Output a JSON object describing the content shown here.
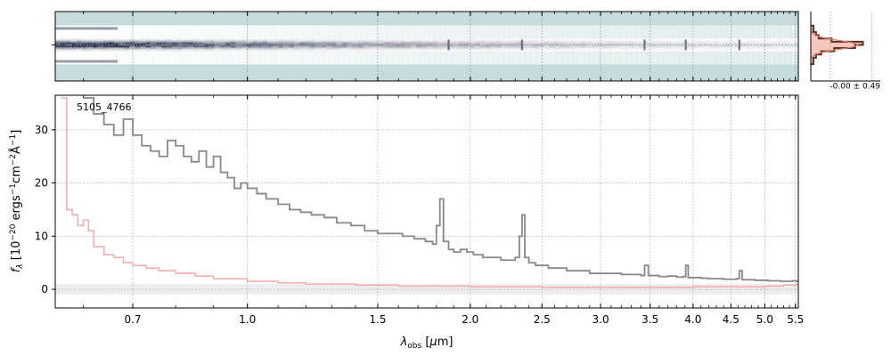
{
  "chart_data": [
    {
      "type": "heatmap",
      "panel": "2d-spectrum",
      "colormap": "bone_r",
      "background_color": "#c5dcdb",
      "grid": true,
      "trace_profile": [
        {
          "x": 0.6,
          "peak": 1.0,
          "width": 5.0,
          "halo": 0.6
        },
        {
          "x": 0.7,
          "peak": 0.95,
          "width": 5.0,
          "halo": 0.55
        },
        {
          "x": 0.85,
          "peak": 0.8,
          "width": 4.5,
          "halo": 0.5
        },
        {
          "x": 1.05,
          "peak": 0.65,
          "width": 4.0,
          "halo": 0.45
        },
        {
          "x": 1.3,
          "peak": 0.5,
          "width": 3.5,
          "halo": 0.4
        },
        {
          "x": 1.6,
          "peak": 0.42,
          "width": 3.0,
          "halo": 0.35
        },
        {
          "x": 2.0,
          "peak": 0.35,
          "width": 3.0,
          "halo": 0.3
        },
        {
          "x": 2.5,
          "peak": 0.28,
          "width": 3.0,
          "halo": 0.25
        },
        {
          "x": 3.0,
          "peak": 0.22,
          "width": 3.0,
          "halo": 0.2
        },
        {
          "x": 4.0,
          "peak": 0.17,
          "width": 3.0,
          "halo": 0.15
        },
        {
          "x": 5.5,
          "peak": 0.14,
          "width": 3.0,
          "halo": 0.12
        }
      ],
      "emission_columns": [
        1.87,
        2.35,
        3.44,
        3.91,
        4.62
      ],
      "trace_color": "#1a2340"
    },
    {
      "type": "line",
      "panel": "1d-spectrum",
      "title": "",
      "annotation": "5105_4766",
      "xlabel": "λ_obs [μm]",
      "ylabel": "f_λ [10^-20 ergs^-1 cm^-2 Å^-1]",
      "xscale": "log",
      "xlim": [
        0.55,
        5.55
      ],
      "ylim": [
        -3.5,
        36.5
      ],
      "x_ticks": [
        0.7,
        1.0,
        1.5,
        2.0,
        2.5,
        3.0,
        3.5,
        4.0,
        4.5,
        5.0,
        5.5
      ],
      "x_tick_labels": [
        "0.7",
        "1.0",
        "1.5",
        "2.0",
        "2.5",
        "3.0",
        "3.5",
        "4.0",
        "4.5",
        "5.0",
        "5.5"
      ],
      "y_ticks": [
        0,
        10,
        20,
        30
      ],
      "y_tick_labels": [
        "0",
        "10",
        "20",
        "30"
      ],
      "grid": true,
      "zero_band": [
        -1.0,
        1.0
      ],
      "series": [
        {
          "color": "#888888",
          "style": "steps",
          "x": [
            0.6,
            0.62,
            0.64,
            0.66,
            0.68,
            0.7,
            0.72,
            0.74,
            0.76,
            0.78,
            0.8,
            0.82,
            0.84,
            0.86,
            0.88,
            0.9,
            0.92,
            0.94,
            0.96,
            0.98,
            1.0,
            1.03,
            1.06,
            1.1,
            1.14,
            1.18,
            1.22,
            1.27,
            1.32,
            1.38,
            1.44,
            1.5,
            1.56,
            1.62,
            1.68,
            1.74,
            1.78,
            1.8,
            1.82,
            1.84,
            1.87,
            1.9,
            1.94,
            1.98,
            2.02,
            2.08,
            2.14,
            2.2,
            2.26,
            2.3,
            2.33,
            2.35,
            2.37,
            2.4,
            2.45,
            2.5,
            2.55,
            2.6,
            2.7,
            2.8,
            2.9,
            3.0,
            3.1,
            3.2,
            3.3,
            3.4,
            3.44,
            3.48,
            3.6,
            3.7,
            3.8,
            3.88,
            3.91,
            3.94,
            4.0,
            4.1,
            4.2,
            4.3,
            4.4,
            4.5,
            4.58,
            4.62,
            4.66,
            4.75,
            4.85,
            4.95,
            5.05,
            5.15,
            5.25,
            5.35,
            5.45,
            5.52
          ],
          "y": [
            36,
            33,
            31,
            29,
            32,
            29,
            27,
            26,
            25,
            28,
            27,
            25,
            24,
            26,
            23,
            25,
            22,
            21,
            19,
            20,
            19,
            18,
            17,
            16,
            15,
            14.5,
            14,
            13.5,
            12.5,
            12,
            11,
            10.5,
            10.5,
            10,
            9.5,
            9,
            8.5,
            12,
            17,
            9,
            7.5,
            7,
            7.5,
            7,
            6.5,
            6,
            6,
            5.5,
            5.5,
            6,
            10,
            14,
            6,
            5,
            4.5,
            4.5,
            4,
            4,
            3.5,
            3.5,
            3,
            3,
            3,
            2.8,
            2.8,
            2.6,
            4.5,
            2.6,
            2.4,
            2.5,
            2.3,
            2.4,
            4.5,
            2.2,
            2.2,
            2.1,
            2,
            2,
            1.9,
            1.9,
            2,
            3.5,
            1.8,
            1.8,
            1.7,
            1.7,
            1.6,
            1.6,
            1.5,
            1.5,
            1.6,
            1.5
          ]
        },
        {
          "color": "#f4a9a8",
          "style": "steps",
          "x": [
            0.56,
            0.57,
            0.58,
            0.59,
            0.6,
            0.61,
            0.62,
            0.64,
            0.66,
            0.68,
            0.7,
            0.73,
            0.76,
            0.8,
            0.85,
            0.9,
            1.0,
            1.1,
            1.2,
            1.4,
            1.6,
            2.0,
            2.5,
            3.0,
            3.5,
            4.0,
            4.5,
            5.0,
            5.3,
            5.52
          ],
          "y": [
            36,
            15,
            14,
            12,
            13,
            11,
            8,
            6.5,
            6,
            5,
            4.5,
            4,
            3.5,
            3,
            2.5,
            2,
            1.5,
            1.2,
            1,
            0.8,
            0.6,
            0.5,
            0.4,
            0.4,
            0.4,
            0.5,
            0.5,
            0.6,
            0.8,
            1.0
          ]
        }
      ]
    },
    {
      "type": "histogram",
      "panel": "residual-histogram",
      "annotation": "-0.00 ± 0.49",
      "bins": [
        -3,
        -2,
        -1.5,
        -1,
        -0.5,
        0,
        0.5,
        1,
        1.5,
        2,
        3
      ],
      "counts": [
        0.05,
        0.1,
        0.15,
        0.4,
        1.0,
        0.85,
        0.45,
        0.2,
        0.1,
        0.05
      ],
      "fill_color": "#f7c6bd",
      "edge_color": "#5a3022",
      "model_color": "#d9806a"
    }
  ]
}
